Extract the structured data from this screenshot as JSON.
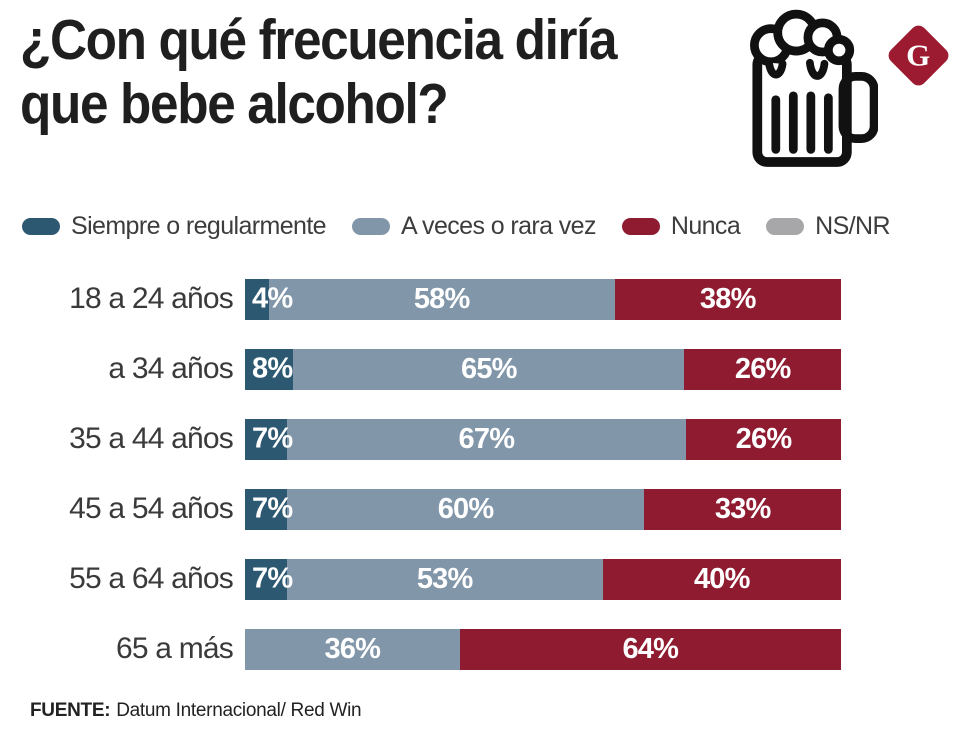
{
  "header": {
    "title_line1": "¿Con qué frecuencia diría",
    "title_line2": "que bebe alcohol?",
    "logo_letter": "G",
    "logo_color": "#9c1b31"
  },
  "legend": {
    "items": [
      {
        "key": "siempre",
        "label": "Siempre o regularmente",
        "color": "#2d5871"
      },
      {
        "key": "aveces",
        "label": "A veces o rara vez",
        "color": "#8196a9"
      },
      {
        "key": "nunca",
        "label": "Nunca",
        "color": "#8e1b30"
      },
      {
        "key": "nsnr",
        "label": "NS/NR",
        "color": "#a7a7a9"
      }
    ]
  },
  "chart_data": {
    "type": "bar",
    "orientation": "horizontal",
    "stacked": true,
    "title": "¿Con qué frecuencia diría que bebe alcohol?",
    "categories": [
      "18 a 24 años",
      "a 34 años",
      "35 a 44 años",
      "45 a 54 años",
      "55 a 64 años",
      "65 a más"
    ],
    "series": [
      {
        "name": "Siempre o regularmente",
        "color": "#2d5871",
        "values": [
          4,
          8,
          7,
          7,
          7,
          0
        ]
      },
      {
        "name": "A veces o rara vez",
        "color": "#8196a9",
        "values": [
          58,
          65,
          67,
          60,
          53,
          36
        ]
      },
      {
        "name": "Nunca",
        "color": "#8e1b30",
        "values": [
          38,
          26,
          26,
          33,
          40,
          64
        ]
      },
      {
        "name": "NS/NR",
        "color": "#a7a7a9",
        "values": [
          0,
          0,
          0,
          0,
          0,
          0
        ]
      }
    ],
    "value_suffix": "%",
    "xlim": [
      0,
      100
    ],
    "legend_position": "top",
    "grid": false
  },
  "footer": {
    "source_label": "FUENTE:",
    "source_text": "Datum Internacional/ Red Win"
  }
}
